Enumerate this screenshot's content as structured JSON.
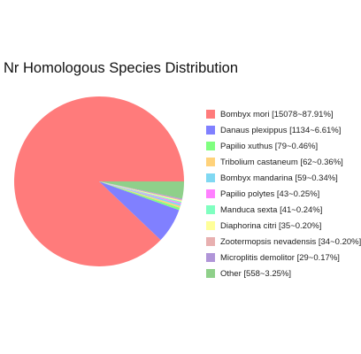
{
  "chart_data": {
    "type": "pie",
    "title": "Nr Homologous Species Distribution",
    "legend_position": "right",
    "slices": [
      {
        "name": "Bombyx mori",
        "count": 15078,
        "percent": 87.91,
        "label": "Bombyx mori [15078~87.91%]",
        "color": "#ff7b7b"
      },
      {
        "name": "Danaus plexippus",
        "count": 1134,
        "percent": 6.61,
        "label": "Danaus plexippus [1134~6.61%]",
        "color": "#8080ff"
      },
      {
        "name": "Papilio xuthus",
        "count": 79,
        "percent": 0.46,
        "label": "Papilio xuthus [79~0.46%]",
        "color": "#80ff80"
      },
      {
        "name": "Tribolium castaneum",
        "count": 62,
        "percent": 0.36,
        "label": "Tribolium castaneum [62~0.36%]",
        "color": "#ffd27a"
      },
      {
        "name": "Bombyx mandarina",
        "count": 59,
        "percent": 0.34,
        "label": "Bombyx mandarina [59~0.34%]",
        "color": "#80d8f2"
      },
      {
        "name": "Papilio polytes",
        "count": 43,
        "percent": 0.25,
        "label": "Papilio polytes [43~0.25%]",
        "color": "#ff80ff"
      },
      {
        "name": "Manduca sexta",
        "count": 41,
        "percent": 0.24,
        "label": "Manduca sexta [41~0.24%]",
        "color": "#80ffc0"
      },
      {
        "name": "Diaphorina citri",
        "count": 35,
        "percent": 0.2,
        "label": "Diaphorina citri [35~0.20%]",
        "color": "#ffff99"
      },
      {
        "name": "Zootermopsis nevadensis",
        "count": 34,
        "percent": 0.2,
        "label": "Zootermopsis nevadensis [34~0.20%]",
        "color": "#e8b0b0"
      },
      {
        "name": "Microplitis demolitor",
        "count": 29,
        "percent": 0.17,
        "label": "Microplitis demolitor [29~0.17%]",
        "color": "#b095d8"
      },
      {
        "name": "Other",
        "count": 558,
        "percent": 3.25,
        "label": "Other [558~3.25%]",
        "color": "#8fd08a"
      }
    ]
  }
}
